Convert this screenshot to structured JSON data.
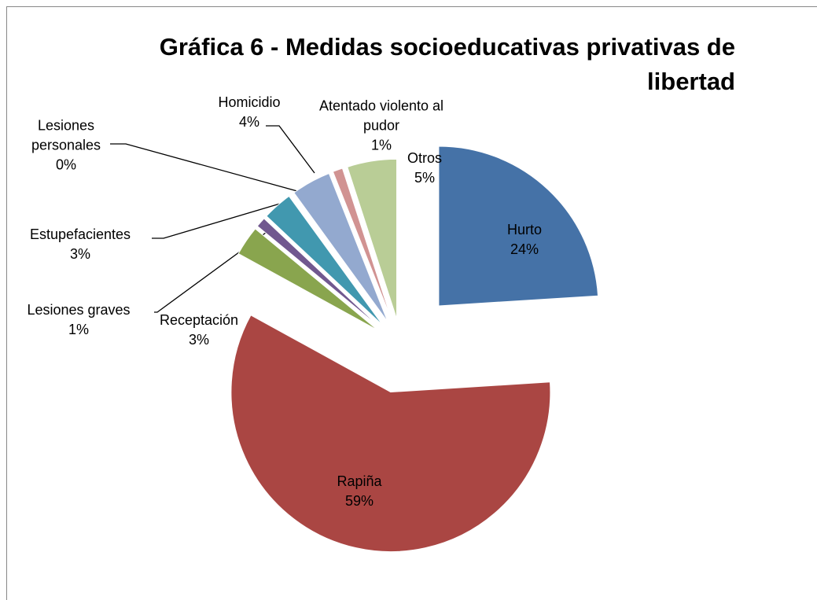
{
  "chart_data": {
    "type": "pie",
    "title": "Gráfica 6 - Medidas socioeducativas privativas de libertad",
    "categories": [
      "Hurto",
      "Rapiña",
      "Receptación",
      "Lesiones graves",
      "Estupefacientes",
      "Lesiones personales",
      "Homicidio",
      "Atentado violento al pudor",
      "Otros"
    ],
    "values": [
      24,
      59,
      3,
      1,
      3,
      0,
      4,
      1,
      5
    ],
    "value_labels": [
      "24%",
      "59%",
      "3%",
      "1%",
      "3%",
      "0%",
      "4%",
      "1%",
      "5%"
    ],
    "colors": [
      "#4572a7",
      "#aa4643",
      "#89a54e",
      "#71588f",
      "#4198af",
      "#db843d",
      "#93a9cf",
      "#d19392",
      "#b9cd96"
    ]
  }
}
